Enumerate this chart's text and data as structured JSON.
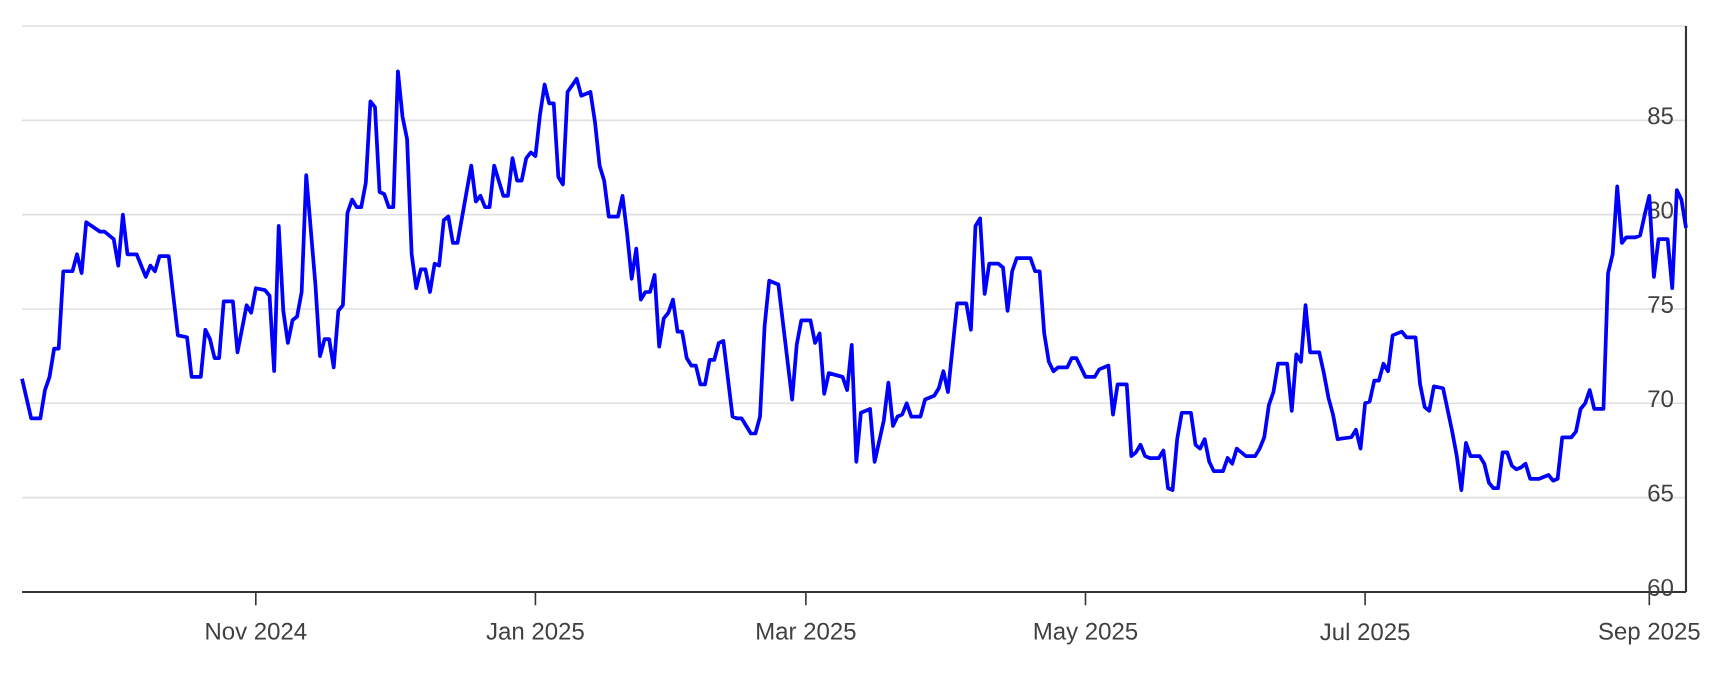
{
  "chart_data": {
    "type": "line",
    "color": "#0000ff",
    "grid": "y",
    "xlim": [
      "2024-09-11",
      "2025-09-09"
    ],
    "xticks": [
      {
        "value": "2024-11-01",
        "label": "Nov 2024"
      },
      {
        "value": "2025-01-01",
        "label": "Jan 2025"
      },
      {
        "value": "2025-03-01",
        "label": "Mar 2025"
      },
      {
        "value": "2025-05-01",
        "label": "May 2025"
      },
      {
        "value": "2025-07-01",
        "label": "Jul 2025"
      },
      {
        "value": "2025-09-01",
        "label": "Sep 2025"
      }
    ],
    "ylim": [
      60,
      90
    ],
    "yticks": [
      60,
      65,
      70,
      75,
      80,
      85,
      {
        "value": 90,
        "label": null
      }
    ],
    "x": [
      "2024-09-11",
      "2024-09-13",
      "2024-09-15",
      "2024-09-16",
      "2024-09-17",
      "2024-09-18",
      "2024-09-19",
      "2024-09-20",
      "2024-09-22",
      "2024-09-23",
      "2024-09-24",
      "2024-09-25",
      "2024-09-28",
      "2024-09-29",
      "2024-10-01",
      "2024-10-02",
      "2024-10-03",
      "2024-10-04",
      "2024-10-06",
      "2024-10-08",
      "2024-10-09",
      "2024-10-10",
      "2024-10-11",
      "2024-10-13",
      "2024-10-15",
      "2024-10-17",
      "2024-10-18",
      "2024-10-20",
      "2024-10-21",
      "2024-10-22",
      "2024-10-23",
      "2024-10-24",
      "2024-10-25",
      "2024-10-27",
      "2024-10-28",
      "2024-10-30",
      "2024-10-31",
      "2024-11-01",
      "2024-11-03",
      "2024-11-04",
      "2024-11-05",
      "2024-11-06",
      "2024-11-07",
      "2024-11-08",
      "2024-11-09",
      "2024-11-10",
      "2024-11-11",
      "2024-11-12",
      "2024-11-14",
      "2024-11-15",
      "2024-11-16",
      "2024-11-17",
      "2024-11-18",
      "2024-11-19",
      "2024-11-20",
      "2024-11-21",
      "2024-11-22",
      "2024-11-23",
      "2024-11-24",
      "2024-11-25",
      "2024-11-26",
      "2024-11-27",
      "2024-11-28",
      "2024-11-29",
      "2024-11-30",
      "2024-12-01",
      "2024-12-02",
      "2024-12-03",
      "2024-12-04",
      "2024-12-05",
      "2024-12-06",
      "2024-12-07",
      "2024-12-08",
      "2024-12-09",
      "2024-12-10",
      "2024-12-11",
      "2024-12-12",
      "2024-12-13",
      "2024-12-14",
      "2024-12-15",
      "2024-12-18",
      "2024-12-19",
      "2024-12-20",
      "2024-12-21",
      "2024-12-22",
      "2024-12-23",
      "2024-12-25",
      "2024-12-26",
      "2024-12-27",
      "2024-12-28",
      "2024-12-29",
      "2024-12-30",
      "2024-12-31",
      "2025-01-01",
      "2025-01-02",
      "2025-01-03",
      "2025-01-04",
      "2025-01-05",
      "2025-01-06",
      "2025-01-07",
      "2025-01-08",
      "2025-01-10",
      "2025-01-11",
      "2025-01-13",
      "2025-01-14",
      "2025-01-15",
      "2025-01-16",
      "2025-01-17",
      "2025-01-19",
      "2025-01-20",
      "2025-01-21",
      "2025-01-22",
      "2025-01-23",
      "2025-01-24",
      "2025-01-25",
      "2025-01-26",
      "2025-01-27",
      "2025-01-28",
      "2025-01-29",
      "2025-01-30",
      "2025-01-31",
      "2025-02-01",
      "2025-02-02",
      "2025-02-03",
      "2025-02-04",
      "2025-02-05",
      "2025-02-06",
      "2025-02-07",
      "2025-02-08",
      "2025-02-09",
      "2025-02-10",
      "2025-02-11",
      "2025-02-13",
      "2025-02-14",
      "2025-02-15",
      "2025-02-17",
      "2025-02-18",
      "2025-02-19",
      "2025-02-20",
      "2025-02-21",
      "2025-02-23",
      "2025-02-26",
      "2025-02-27",
      "2025-02-28",
      "2025-03-02",
      "2025-03-03",
      "2025-03-04",
      "2025-03-05",
      "2025-03-06",
      "2025-03-09",
      "2025-03-10",
      "2025-03-11",
      "2025-03-12",
      "2025-03-13",
      "2025-03-15",
      "2025-03-16",
      "2025-03-18",
      "2025-03-19",
      "2025-03-20",
      "2025-03-21",
      "2025-03-22",
      "2025-03-23",
      "2025-03-24",
      "2025-03-26",
      "2025-03-27",
      "2025-03-29",
      "2025-03-30",
      "2025-03-31",
      "2025-04-01",
      "2025-04-03",
      "2025-04-05",
      "2025-04-06",
      "2025-04-07",
      "2025-04-08",
      "2025-04-09",
      "2025-04-10",
      "2025-04-12",
      "2025-04-13",
      "2025-04-14",
      "2025-04-15",
      "2025-04-16",
      "2025-04-19",
      "2025-04-20",
      "2025-04-21",
      "2025-04-22",
      "2025-04-23",
      "2025-04-24",
      "2025-04-25",
      "2025-04-27",
      "2025-04-28",
      "2025-04-29",
      "2025-05-01",
      "2025-05-03",
      "2025-05-04",
      "2025-05-06",
      "2025-05-07",
      "2025-05-08",
      "2025-05-10",
      "2025-05-11",
      "2025-05-12",
      "2025-05-13",
      "2025-05-14",
      "2025-05-15",
      "2025-05-17",
      "2025-05-18",
      "2025-05-19",
      "2025-05-20",
      "2025-05-21",
      "2025-05-22",
      "2025-05-24",
      "2025-05-25",
      "2025-05-26",
      "2025-05-27",
      "2025-05-28",
      "2025-05-29",
      "2025-05-31",
      "2025-06-01",
      "2025-06-02",
      "2025-06-03",
      "2025-06-04",
      "2025-06-05",
      "2025-06-07",
      "2025-06-08",
      "2025-06-09",
      "2025-06-10",
      "2025-06-11",
      "2025-06-12",
      "2025-06-14",
      "2025-06-15",
      "2025-06-16",
      "2025-06-17",
      "2025-06-18",
      "2025-06-19",
      "2025-06-21",
      "2025-06-22",
      "2025-06-23",
      "2025-06-24",
      "2025-06-25",
      "2025-06-28",
      "2025-06-29",
      "2025-06-30",
      "2025-07-01",
      "2025-07-02",
      "2025-07-03",
      "2025-07-04",
      "2025-07-05",
      "2025-07-06",
      "2025-07-07",
      "2025-07-09",
      "2025-07-10",
      "2025-07-12",
      "2025-07-13",
      "2025-07-14",
      "2025-07-15",
      "2025-07-16",
      "2025-07-18",
      "2025-07-20",
      "2025-07-21",
      "2025-07-22",
      "2025-07-23",
      "2025-07-24",
      "2025-07-26",
      "2025-07-27",
      "2025-07-28",
      "2025-07-29",
      "2025-07-30",
      "2025-07-31",
      "2025-08-01",
      "2025-08-02",
      "2025-08-03",
      "2025-08-04",
      "2025-08-05",
      "2025-08-06",
      "2025-08-08",
      "2025-08-10",
      "2025-08-11",
      "2025-08-12",
      "2025-08-13",
      "2025-08-15",
      "2025-08-16",
      "2025-08-17",
      "2025-08-18",
      "2025-08-19",
      "2025-08-20",
      "2025-08-22",
      "2025-08-23",
      "2025-08-24",
      "2025-08-25",
      "2025-08-26",
      "2025-08-27",
      "2025-08-29",
      "2025-08-30",
      "2025-08-31",
      "2025-09-01",
      "2025-09-02",
      "2025-09-03",
      "2025-09-05",
      "2025-09-06",
      "2025-09-07",
      "2025-09-08",
      "2025-09-09"
    ],
    "values": [
      71.3,
      69.2,
      69.2,
      70.7,
      71.4,
      72.9,
      72.9,
      77.0,
      77.0,
      77.9,
      76.9,
      79.6,
      79.1,
      79.1,
      78.7,
      77.3,
      80.0,
      77.9,
      77.9,
      76.7,
      77.3,
      77.0,
      77.8,
      77.8,
      73.6,
      73.5,
      71.4,
      71.4,
      73.9,
      73.4,
      72.4,
      72.4,
      75.4,
      75.4,
      72.7,
      75.2,
      74.8,
      76.1,
      76.0,
      75.7,
      71.7,
      79.4,
      74.9,
      73.2,
      74.4,
      74.6,
      75.9,
      82.1,
      76.3,
      72.5,
      73.4,
      73.4,
      71.9,
      74.9,
      75.2,
      80.1,
      80.8,
      80.4,
      80.4,
      81.7,
      86.0,
      85.7,
      81.2,
      81.1,
      80.4,
      80.4,
      87.6,
      85.2,
      84.0,
      77.9,
      76.1,
      77.1,
      77.1,
      75.9,
      77.4,
      77.3,
      79.7,
      79.9,
      78.5,
      78.5,
      82.6,
      80.7,
      81.0,
      80.4,
      80.4,
      82.6,
      81.0,
      81.0,
      83.0,
      81.8,
      81.8,
      83.0,
      83.3,
      83.1,
      85.3,
      86.9,
      85.9,
      85.9,
      82.0,
      81.6,
      86.5,
      87.2,
      86.3,
      86.5,
      84.9,
      82.6,
      81.8,
      79.9,
      79.9,
      81.0,
      79.0,
      76.6,
      78.2,
      75.5,
      75.9,
      75.9,
      76.8,
      73.0,
      74.5,
      74.8,
      75.5,
      73.8,
      73.8,
      72.4,
      72.0,
      72.0,
      71.0,
      71.0,
      72.3,
      72.3,
      73.2,
      73.3,
      69.3,
      69.2,
      69.2,
      68.4,
      68.4,
      69.3,
      74.1,
      76.5,
      76.3,
      70.2,
      73.1,
      74.4,
      74.4,
      73.2,
      73.7,
      70.5,
      71.6,
      71.4,
      70.7,
      73.1,
      66.9,
      69.5,
      69.7,
      66.9,
      69.1,
      71.1,
      68.8,
      69.3,
      69.4,
      70.0,
      69.3,
      69.3,
      70.2,
      70.4,
      70.8,
      71.7,
      70.6,
      75.3,
      75.3,
      73.9,
      79.4,
      79.8,
      75.8,
      77.4,
      77.4,
      77.2,
      74.9,
      77.0,
      77.7,
      77.7,
      77.0,
      77.0,
      73.7,
      72.2,
      71.7,
      71.9,
      71.9,
      72.4,
      72.4,
      71.4,
      71.4,
      71.8,
      72.0,
      69.4,
      71.0,
      71.0,
      67.2,
      67.4,
      67.8,
      67.2,
      67.1,
      67.1,
      67.5,
      65.5,
      65.4,
      68.1,
      69.5,
      69.5,
      67.8,
      67.6,
      68.1,
      66.9,
      66.4,
      66.4,
      67.1,
      66.8,
      67.6,
      67.4,
      67.2,
      67.2,
      67.6,
      68.2,
      69.9,
      70.6,
      72.1,
      72.1,
      69.6,
      72.6,
      72.2,
      75.2,
      72.7,
      72.7,
      71.6,
      70.3,
      69.4,
      68.1,
      68.2,
      68.6,
      67.6,
      70.0,
      70.1,
      71.2,
      71.2,
      72.1,
      71.7,
      73.6,
      73.8,
      73.5,
      73.5,
      71.0,
      69.8,
      69.6,
      70.9,
      70.8,
      68.5,
      67.2,
      65.4,
      67.9,
      67.2,
      67.2,
      66.8,
      65.8,
      65.5,
      65.5,
      67.4,
      67.4,
      66.7,
      66.5,
      66.6,
      66.8,
      66.0,
      66.0,
      66.2,
      65.9,
      66.0,
      68.2,
      68.2,
      68.5,
      69.7,
      70.0,
      70.7,
      69.7,
      69.7,
      76.9,
      77.9,
      81.5,
      78.5,
      78.8,
      78.8,
      78.9,
      80.0,
      81.0,
      76.7,
      78.7,
      78.7,
      76.1,
      81.3,
      80.8,
      79.3
    ]
  }
}
